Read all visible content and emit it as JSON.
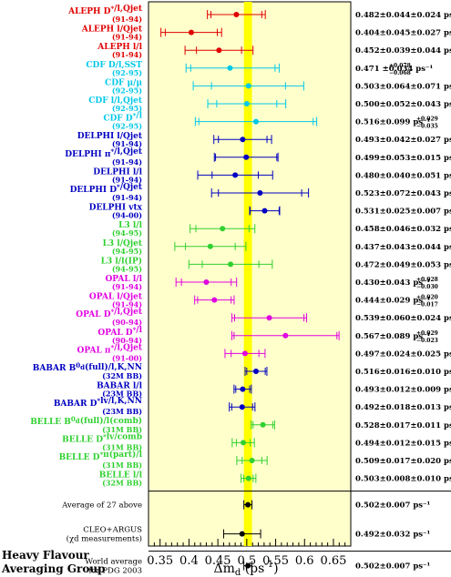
{
  "chart_data": {
    "type": "scatter",
    "title": "",
    "xlabel": "Δm_d (ps^-1)",
    "ylabel": "",
    "xlim": [
      0.33,
      0.68
    ],
    "xticks": [
      0.35,
      0.4,
      0.45,
      0.5,
      0.55,
      0.6,
      0.65
    ],
    "xtick_labels": [
      "0.35",
      "0.4",
      "0.45",
      "0.5",
      "0.55",
      "0.6",
      "0.65"
    ],
    "world_average": {
      "value": 0.502,
      "error": 0.007
    },
    "band_color": "#ffff00",
    "panel_color": "#ffffcc",
    "footer_label": [
      "Heavy Flavour",
      "Averaging Group"
    ],
    "measurements": [
      {
        "label": "ALEPH D*/l,Q",
        "label_main": "ALEPH D",
        "label_sup": "*",
        "label_suffix": "/l,Qjet",
        "period": "(91-94)",
        "color": "#e00000",
        "value": 0.482,
        "stat": 0.044,
        "syst": 0.024,
        "result_text": "0.482±0.044±0.024 ps⁻¹"
      },
      {
        "label": "ALEPH l/Qjet",
        "label_main": "ALEPH l/Q",
        "label_sup": "",
        "label_suffix": "jet",
        "period": "(91-94)",
        "color": "#e00000",
        "value": 0.404,
        "stat": 0.045,
        "syst": 0.027,
        "result_text": "0.404±0.045±0.027 ps⁻¹"
      },
      {
        "label": "ALEPH l/l",
        "label_main": "ALEPH l/l",
        "label_sup": "",
        "label_suffix": "",
        "period": "(91-94)",
        "color": "#e00000",
        "value": 0.452,
        "stat": 0.039,
        "syst": 0.044,
        "result_text": "0.452±0.039±0.044 ps⁻¹"
      },
      {
        "label": "CDF D/l,SST",
        "label_main": "CDF D/l,SST",
        "label_sup": "",
        "label_suffix": "",
        "period": "(92-95)",
        "color": "#00c8e8",
        "value": 0.471,
        "stat": 0.078,
        "stat_lo": 0.068,
        "syst": 0.034,
        "result_text": "0.471 ±0.034 ps⁻¹",
        "stat_up_text": "+0.078",
        "stat_dn_text": "−0.068"
      },
      {
        "label": "CDF μ/μ",
        "label_main": "CDF μ/μ",
        "label_sup": "",
        "label_suffix": "",
        "period": "(92-95)",
        "color": "#00c8e8",
        "value": 0.503,
        "stat": 0.064,
        "syst": 0.071,
        "result_text": "0.503±0.064±0.071 ps⁻¹"
      },
      {
        "label": "CDF l/l,Qjet",
        "label_main": "CDF l/l,Q",
        "label_sup": "",
        "label_suffix": "jet",
        "period": "(92-95)",
        "color": "#00c8e8",
        "value": 0.5,
        "stat": 0.052,
        "syst": 0.043,
        "result_text": "0.500±0.052±0.043 ps⁻¹"
      },
      {
        "label": "CDF D*/l",
        "label_main": "CDF D",
        "label_sup": "*",
        "label_suffix": "/l",
        "period": "(92-95)",
        "color": "#00c8e8",
        "value": 0.516,
        "stat": 0.099,
        "stat_lo": 0.099,
        "syst": 0.035,
        "result_text": "0.516±0.099 ps⁻¹",
        "syst_up_text": "+0.029",
        "syst_dn_text": "−0.035"
      },
      {
        "label": "DELPHI l/Qjet",
        "label_main": "DELPHI l/Q",
        "label_sup": "",
        "label_suffix": "jet",
        "period": "(91-94)",
        "color": "#0000c0",
        "value": 0.493,
        "stat": 0.042,
        "syst": 0.027,
        "result_text": "0.493±0.042±0.027 ps⁻¹"
      },
      {
        "label": "DELPHI π*/l,Qjet",
        "label_main": "DELPHI π",
        "label_sup": "*",
        "label_suffix": "/l,Qjet",
        "period": "(91-94)",
        "color": "#0000c0",
        "value": 0.499,
        "stat": 0.053,
        "syst": 0.015,
        "result_text": "0.499±0.053±0.015 ps⁻¹"
      },
      {
        "label": "DELPHI l/l",
        "label_main": "DELPHI l/l",
        "label_sup": "",
        "label_suffix": "",
        "period": "(91-94)",
        "color": "#0000c0",
        "value": 0.48,
        "stat": 0.04,
        "syst": 0.051,
        "result_text": "0.480±0.040±0.051 ps⁻¹"
      },
      {
        "label": "DELPHI D*/Qjet",
        "label_main": "DELPHI D",
        "label_sup": "*",
        "label_suffix": "/Qjet",
        "period": "(91-94)",
        "color": "#0000c0",
        "value": 0.523,
        "stat": 0.072,
        "syst": 0.043,
        "result_text": "0.523±0.072±0.043 ps⁻¹"
      },
      {
        "label": "DELPHI vtx",
        "label_main": "DELPHI vtx",
        "label_sup": "",
        "label_suffix": "",
        "period": "(94-00)",
        "color": "#0000c0",
        "value": 0.531,
        "stat": 0.025,
        "syst": 0.007,
        "result_text": "0.531±0.025±0.007 ps⁻¹"
      },
      {
        "label": "L3 l/l",
        "label_main": "L3 l/l",
        "label_sup": "",
        "label_suffix": "",
        "period": "(94-95)",
        "color": "#30d030",
        "value": 0.458,
        "stat": 0.046,
        "syst": 0.032,
        "result_text": "0.458±0.046±0.032 ps⁻¹"
      },
      {
        "label": "L3 l/Qjet",
        "label_main": "L3 l/Q",
        "label_sup": "",
        "label_suffix": "jet",
        "period": "(94-95)",
        "color": "#30d030",
        "value": 0.437,
        "stat": 0.043,
        "syst": 0.044,
        "result_text": "0.437±0.043±0.044 ps⁻¹"
      },
      {
        "label": "L3 l/l(IP)",
        "label_main": "L3 l/l(IP)",
        "label_sup": "",
        "label_suffix": "",
        "period": "(94-95)",
        "color": "#30d030",
        "value": 0.472,
        "stat": 0.049,
        "syst": 0.053,
        "result_text": "0.472±0.049±0.053 ps⁻¹"
      },
      {
        "label": "OPAL l/l",
        "label_main": "OPAL l/l",
        "label_sup": "",
        "label_suffix": "",
        "period": "(91-94)",
        "color": "#e000e0",
        "value": 0.43,
        "stat": 0.043,
        "syst": 0.03,
        "result_text": "0.430±0.043 ps⁻¹",
        "syst_up_text": "+0.028",
        "syst_dn_text": "−0.030"
      },
      {
        "label": "OPAL l/Qjet",
        "label_main": "OPAL l/Q",
        "label_sup": "",
        "label_suffix": "jet",
        "period": "(91-94)",
        "color": "#e000e0",
        "value": 0.444,
        "stat": 0.029,
        "syst": 0.018,
        "result_text": "0.444±0.029 ps⁻¹",
        "syst_up_text": "+0.020",
        "syst_dn_text": "−0.017"
      },
      {
        "label": "OPAL D*/l,Qjet",
        "label_main": "OPAL D",
        "label_sup": "*",
        "label_suffix": "/l,Qjet",
        "period": "(90-94)",
        "color": "#e000e0",
        "value": 0.539,
        "stat": 0.06,
        "syst": 0.024,
        "result_text": "0.539±0.060±0.024 ps⁻¹"
      },
      {
        "label": "OPAL D*/l",
        "label_main": "OPAL D",
        "label_sup": "*",
        "label_suffix": "/l",
        "period": "(90-94)",
        "color": "#e000e0",
        "value": 0.567,
        "stat": 0.089,
        "syst": 0.026,
        "result_text": "0.567±0.089 ps⁻¹",
        "syst_up_text": "+0.029",
        "syst_dn_text": "−0.023"
      },
      {
        "label": "OPAL π*/l,Qjet",
        "label_main": "OPAL π",
        "label_sup": "*",
        "label_suffix": "/l,Qjet",
        "period": "(91-00)",
        "color": "#e000e0",
        "value": 0.497,
        "stat": 0.024,
        "syst": 0.025,
        "result_text": "0.497±0.024±0.025 ps⁻¹"
      },
      {
        "label": "BABAR B0d(full)/l,K,NN",
        "label_main": "BABAR B",
        "label_sup": "0",
        "label_sub": "d",
        "label_suffix": "(full)/l,K,NN",
        "period": "(32M BB)",
        "color": "#0000c0",
        "value": 0.516,
        "stat": 0.016,
        "syst": 0.01,
        "result_text": "0.516±0.016±0.010 ps⁻¹"
      },
      {
        "label": "BABAR l/l",
        "label_main": "BABAR l/l",
        "label_sup": "",
        "label_suffix": "",
        "period": "(23M BB)",
        "color": "#0000c0",
        "value": 0.493,
        "stat": 0.012,
        "syst": 0.009,
        "result_text": "0.493±0.012±0.009 ps⁻¹"
      },
      {
        "label": "BABAR D*lv/l,K,NN",
        "label_main": "BABAR D",
        "label_sup": "*",
        "label_suffix": "lv/l,K,NN",
        "period": "(23M BB)",
        "color": "#0000c0",
        "value": 0.492,
        "stat": 0.018,
        "syst": 0.013,
        "result_text": "0.492±0.018±0.013 ps⁻¹"
      },
      {
        "label": "BELLE B0d(full)/l(comb)",
        "label_main": "BELLE B",
        "label_sup": "0",
        "label_sub": "d",
        "label_suffix": "(full)/l(comb)",
        "period": "(31M BB)",
        "color": "#30d030",
        "value": 0.528,
        "stat": 0.017,
        "syst": 0.011,
        "result_text": "0.528±0.017±0.011 ps⁻¹"
      },
      {
        "label": "BELLE D*lv/comb",
        "label_main": "BELLE D",
        "label_sup": "*",
        "label_suffix": "lv/comb",
        "period": "(31M BB)",
        "color": "#30d030",
        "value": 0.494,
        "stat": 0.012,
        "syst": 0.015,
        "result_text": "0.494±0.012±0.015 ps⁻¹"
      },
      {
        "label": "BELLE D*π(part)/l",
        "label_main": "BELLE D",
        "label_sup": "*",
        "label_suffix": "π(part)/l",
        "period": "(31M BB)",
        "color": "#30d030",
        "value": 0.509,
        "stat": 0.017,
        "syst": 0.02,
        "result_text": "0.509±0.017±0.020 ps⁻¹"
      },
      {
        "label": "BELLE l/l",
        "label_main": "BELLE l/l",
        "label_sup": "",
        "label_suffix": "",
        "period": "(32M BB)",
        "color": "#30d030",
        "value": 0.503,
        "stat": 0.008,
        "syst": 0.01,
        "result_text": "0.503±0.008±0.010 ps⁻¹"
      }
    ],
    "averages": [
      {
        "label": "Average of 27 above",
        "value": 0.502,
        "err": 0.007,
        "result_text": "0.502±0.007 ps⁻¹"
      },
      {
        "label": "CLEO+ARGUS",
        "label2": "(χd measurements)",
        "value": 0.492,
        "err": 0.032,
        "result_text": "0.492±0.032 ps⁻¹"
      },
      {
        "label": "World average",
        "label2": "for PDG 2003",
        "value": 0.502,
        "err": 0.007,
        "result_text": "0.502±0.007 ps⁻¹"
      }
    ]
  }
}
